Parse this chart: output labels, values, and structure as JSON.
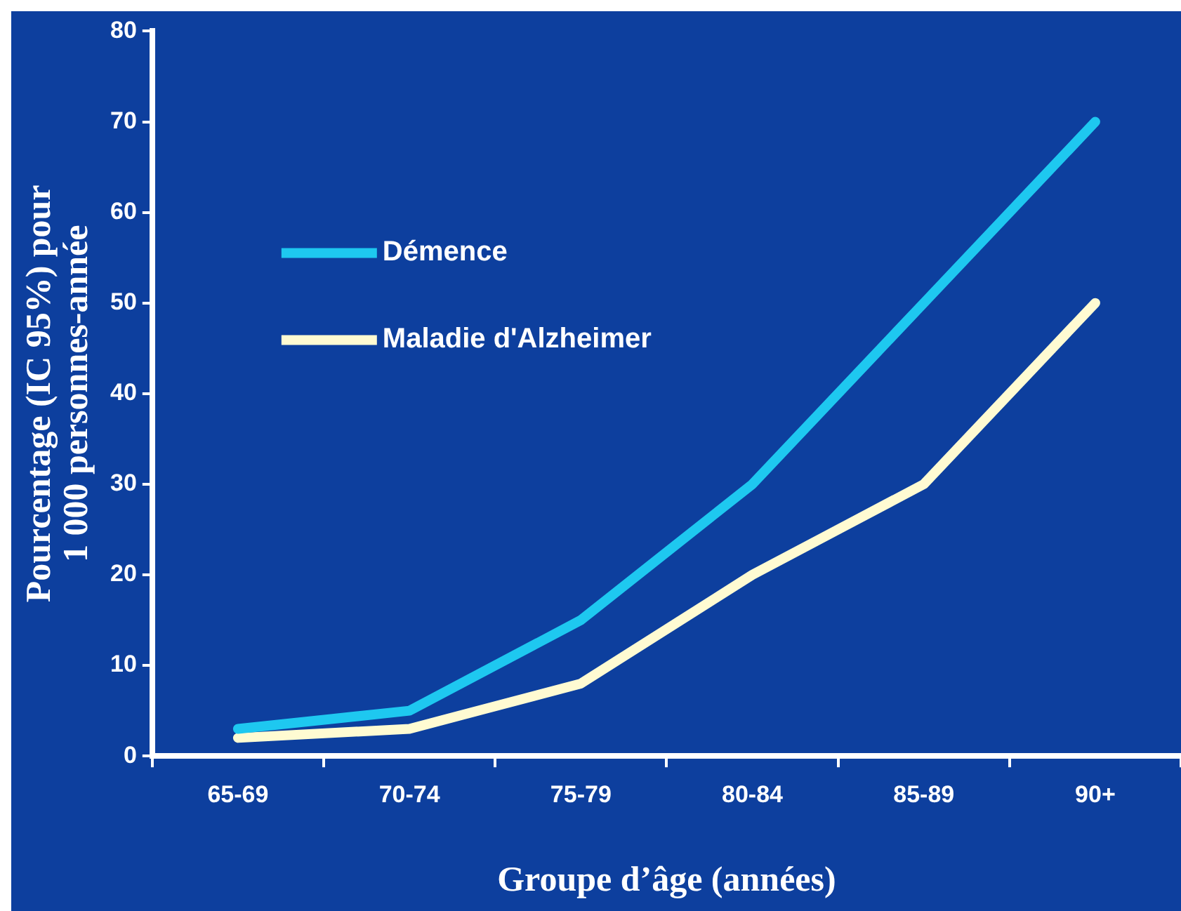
{
  "chart_data": {
    "type": "line",
    "xlabel": "Groupe d’âge (années)",
    "ylabel": "Pourcentage (IC 95%) pour 1 000 personnes-année",
    "categories": [
      "65-69",
      "70-74",
      "75-79",
      "80-84",
      "85-89",
      "90+"
    ],
    "series": [
      {
        "name": "Démence",
        "color": "#1ec8f0",
        "values": [
          3,
          5,
          15,
          30,
          50,
          70
        ]
      },
      {
        "name": "Maladie d'Alzheimer",
        "color": "#fffbd2",
        "values": [
          2,
          3,
          8,
          20,
          30,
          50
        ]
      }
    ],
    "ylim": [
      0,
      80
    ],
    "yticks": [
      0,
      10,
      20,
      30,
      40,
      50,
      60,
      70,
      80
    ],
    "grid": false,
    "legend": "top left",
    "marker": "none",
    "line_style": "solid"
  }
}
